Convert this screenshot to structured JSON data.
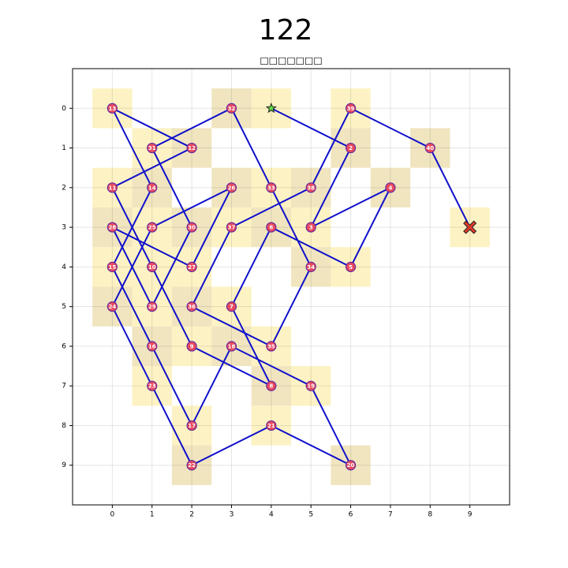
{
  "chart_data": {
    "type": "path",
    "title": "122",
    "subtitle": "□□□□□□□",
    "xlim": [
      -1,
      10
    ],
    "ylim": [
      10,
      -1
    ],
    "xticks": [
      0,
      1,
      2,
      3,
      4,
      5,
      6,
      7,
      8,
      9
    ],
    "yticks": [
      0,
      1,
      2,
      3,
      4,
      5,
      6,
      7,
      8,
      9
    ],
    "grid": true,
    "line_color": "#1010cc",
    "x": [
      4,
      6,
      5,
      7,
      6,
      4,
      3,
      4,
      2,
      1,
      0,
      2,
      0,
      1,
      0,
      1,
      2,
      3,
      5,
      6,
      4,
      2,
      1,
      0,
      1,
      3,
      2,
      0,
      1,
      2,
      1,
      3,
      4,
      5,
      4,
      2,
      3,
      5,
      6,
      8,
      9
    ],
    "y": [
      0,
      1,
      3,
      2,
      4,
      3,
      5,
      7,
      6,
      4,
      2,
      1,
      0,
      2,
      4,
      6,
      8,
      6,
      7,
      9,
      8,
      9,
      7,
      5,
      3,
      2,
      4,
      3,
      5,
      3,
      1,
      0,
      2,
      4,
      6,
      5,
      3,
      2,
      0,
      1,
      3
    ],
    "labels": [
      null,
      2,
      3,
      4,
      5,
      6,
      7,
      8,
      9,
      10,
      11,
      12,
      13,
      14,
      15,
      16,
      17,
      18,
      19,
      20,
      21,
      22,
      23,
      24,
      25,
      26,
      27,
      28,
      29,
      30,
      31,
      32,
      33,
      34,
      35,
      36,
      37,
      38,
      39,
      40,
      null
    ],
    "cell_colors": [
      "#fdf0b8",
      "#ede0b4",
      "#fdf0b8",
      "#ede0b4",
      "#fdf0b8",
      "#ede0b4",
      "#fdf0b8",
      "#ede0b4",
      "#fdf0b8",
      "#fdf0b8",
      "#fdf0b8",
      "#ede0b4",
      "#fdf0b8",
      "#ede0b4",
      "#fdf0b8",
      "#ede0b4",
      "#fdf0b8",
      "#ede0b4",
      "#fdf0b8",
      "#ede0b4",
      "#fdf0b8",
      "#ede0b4",
      "#fdf0b8",
      "#ede0b4",
      "#fdf0b8",
      "#ede0b4",
      "#fdf0b8",
      "#ede0b4",
      "#fdf0b8",
      "#ede0b4",
      "#fdf0b8",
      "#ede0b4",
      "#fdf0b8",
      "#ede0b4",
      "#fdf0b8",
      "#ede0b4",
      "#fdf0b8",
      "#ede0b4",
      "#fdf0b8",
      "#ede0b4",
      "#fdf0b8"
    ],
    "node_color": "#e84a5f",
    "start_color": "#66dd44",
    "end_color": "#e03a2a"
  }
}
